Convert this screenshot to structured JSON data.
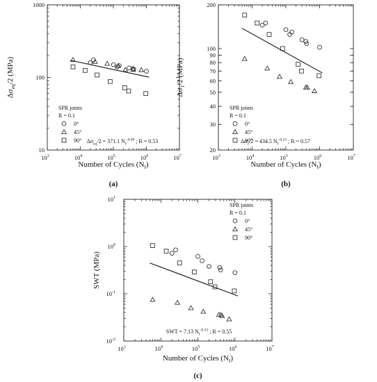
{
  "chart_data": [
    {
      "panel_label": "(a)",
      "type": "scatter",
      "xlabel": "Number of Cycles (N",
      "xlabel_sub": "f",
      "xlabel_end": ")",
      "ylabel": "Δσ",
      "ylabel_sub": "eq",
      "ylabel_end": "/2 (MPa)",
      "xscale": "log",
      "yscale": "log",
      "xlim": [
        1000,
        10000000
      ],
      "ylim": [
        10,
        1000
      ],
      "x_ticks": [
        {
          "v": 1000,
          "b": "10",
          "e": "3"
        },
        {
          "v": 10000,
          "b": "10",
          "e": "4"
        },
        {
          "v": 100000,
          "b": "10",
          "e": "5"
        },
        {
          "v": 1000000,
          "b": "10",
          "e": "6"
        },
        {
          "v": 10000000,
          "b": "10",
          "e": "7"
        }
      ],
      "y_ticks": [
        {
          "v": 10,
          "t": "10"
        },
        {
          "v": 100,
          "t": "100"
        },
        {
          "v": 1000,
          "t": "1000"
        }
      ],
      "legend": {
        "title": "SPR joints",
        "subtitle": "R = 0.1",
        "position": "bottom-left",
        "entries": [
          "0°",
          "45°",
          "90°"
        ]
      },
      "series": [
        {
          "name": "0°",
          "marker": "circle",
          "x": [
            20000,
            25000,
            100000,
            130000,
            150000,
            300000,
            390000,
            410000,
            1000000
          ],
          "y": [
            160,
            175,
            150,
            140,
            145,
            135,
            132,
            130,
            122
          ]
        },
        {
          "name": "45°",
          "marker": "triangle",
          "x": [
            6000,
            28000,
            65000,
            140000,
            230000,
            400000,
            700000
          ],
          "y": [
            175,
            165,
            155,
            145,
            128,
            128,
            127
          ]
        },
        {
          "name": "90°",
          "marker": "square",
          "x": [
            6000,
            14000,
            32000,
            80000,
            220000,
            290000,
            960000
          ],
          "y": [
            140,
            125,
            108,
            88,
            72,
            65,
            60
          ]
        }
      ],
      "fit": {
        "x": [
          5000,
          1200000
        ],
        "y": [
          172,
          101
        ]
      },
      "equation": {
        "pre": "Δσ",
        "pre_sub": "eq",
        "mid": "/2 = 371.1 N",
        "mid_sub": "f",
        "exp": "-0.09",
        "post": " ; R = 0.53"
      }
    },
    {
      "panel_label": "(b)",
      "type": "scatter",
      "xlabel": "Number of Cycles (N",
      "xlabel_sub": "f",
      "xlabel_end": ")",
      "ylabel": "Δσ",
      "ylabel_sub": "1",
      "ylabel_end": "/2 (MPa)",
      "xscale": "log",
      "yscale": "log",
      "xlim": [
        1000,
        10000000
      ],
      "ylim": [
        20,
        200
      ],
      "x_ticks": [
        {
          "v": 1000,
          "b": "10",
          "e": "3"
        },
        {
          "v": 10000,
          "b": "10",
          "e": "4"
        },
        {
          "v": 100000,
          "b": "10",
          "e": "5"
        },
        {
          "v": 1000000,
          "b": "10",
          "e": "6"
        },
        {
          "v": 10000000,
          "b": "10",
          "e": "7"
        }
      ],
      "y_ticks": [
        {
          "v": 20,
          "t": "20"
        },
        {
          "v": 30,
          "t": "30"
        },
        {
          "v": 40,
          "t": "40"
        },
        {
          "v": 50,
          "t": "50"
        },
        {
          "v": 60,
          "t": "60"
        },
        {
          "v": 70,
          "t": "70"
        },
        {
          "v": 80,
          "t": "80"
        },
        {
          "v": 90,
          "t": "90"
        },
        {
          "v": 100,
          "t": "100"
        },
        {
          "v": 200,
          "t": "200"
        }
      ],
      "legend": {
        "title": "SPR joints",
        "subtitle": "R = 0.1",
        "position": "bottom-left",
        "entries": [
          "0°",
          "45°",
          "90°"
        ]
      },
      "series": [
        {
          "name": "0°",
          "marker": "circle",
          "x": [
            20000,
            25000,
            100000,
            130000,
            150000,
            300000,
            390000,
            410000,
            1000000
          ],
          "y": [
            145,
            150,
            135,
            125,
            130,
            115,
            112,
            108,
            102
          ]
        },
        {
          "name": "45°",
          "marker": "triangle",
          "x": [
            6000,
            28000,
            65000,
            140000,
            390000,
            430000,
            700000
          ],
          "y": [
            85,
            73,
            64,
            59,
            54,
            54,
            51
          ]
        },
        {
          "name": "90°",
          "marker": "square",
          "x": [
            6000,
            14000,
            32000,
            80000,
            230000,
            290000,
            960000
          ],
          "y": [
            170,
            150,
            125,
            100,
            78,
            70,
            65
          ]
        }
      ],
      "fit": {
        "x": [
          5000,
          1200000
        ],
        "y": [
          138,
          68
        ]
      },
      "equation": {
        "pre": "Δσ",
        "pre_sub": "1",
        "mid": "/2 = 434.5 N",
        "mid_sub": "f",
        "exp": "-0.13",
        "post": " ; R = 0.57"
      }
    },
    {
      "panel_label": "(c)",
      "type": "scatter",
      "xlabel": "Number of Cycles (N",
      "xlabel_sub": "f",
      "xlabel_end": ")",
      "ylabel": "SWT (MPa)",
      "ylabel_sub": "",
      "ylabel_end": "",
      "xscale": "log",
      "yscale": "log",
      "xlim": [
        1000,
        10000000
      ],
      "ylim": [
        0.01,
        10
      ],
      "x_ticks": [
        {
          "v": 1000,
          "b": "10",
          "e": "3"
        },
        {
          "v": 10000,
          "b": "10",
          "e": "4"
        },
        {
          "v": 100000,
          "b": "10",
          "e": "5"
        },
        {
          "v": 1000000,
          "b": "10",
          "e": "6"
        },
        {
          "v": 10000000,
          "b": "10",
          "e": "7"
        }
      ],
      "y_ticks": [
        {
          "v": 0.01,
          "b": "10",
          "e": "-2"
        },
        {
          "v": 0.1,
          "b": "10",
          "e": "-1"
        },
        {
          "v": 1,
          "b": "10",
          "e": "0"
        },
        {
          "v": 10,
          "b": "10",
          "e": "1"
        }
      ],
      "legend": {
        "title": "SPR joints",
        "subtitle": "R = 0.1",
        "position": "top-right",
        "entries": [
          "0°",
          "45°",
          "90°"
        ]
      },
      "series": [
        {
          "name": "0°",
          "marker": "circle",
          "x": [
            20000,
            25000,
            100000,
            130000,
            200000,
            390000,
            410000,
            1000000
          ],
          "y": [
            0.72,
            0.85,
            0.62,
            0.5,
            0.38,
            0.36,
            0.32,
            0.28
          ]
        },
        {
          "name": "45°",
          "marker": "triangle",
          "x": [
            6000,
            28000,
            65000,
            140000,
            370000,
            420000,
            450000,
            700000
          ],
          "y": [
            0.075,
            0.065,
            0.05,
            0.042,
            0.036,
            0.036,
            0.034,
            0.029
          ]
        },
        {
          "name": "90°",
          "marker": "square",
          "x": [
            6000,
            14000,
            32000,
            80000,
            220000,
            290000,
            960000
          ],
          "y": [
            1.05,
            0.8,
            0.45,
            0.29,
            0.18,
            0.14,
            0.115
          ]
        }
      ],
      "fit": {
        "x": [
          5000,
          1200000
        ],
        "y": [
          0.45,
          0.09
        ]
      },
      "equation": {
        "pre": "SWT = 7.13 N",
        "pre_sub": "f",
        "mid": "",
        "mid_sub": "",
        "exp": "-0.33",
        "post": " ; R = 0.55"
      }
    }
  ]
}
